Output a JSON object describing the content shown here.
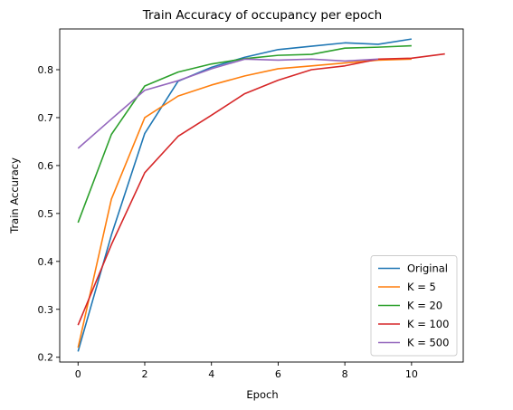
{
  "chart_data": {
    "type": "line",
    "title": "Train Accuracy of occupancy per epoch",
    "xlabel": "Epoch",
    "ylabel": "Train Accuracy",
    "xlim": [
      -0.55,
      11.55
    ],
    "ylim": [
      0.19,
      0.885
    ],
    "xticks": [
      0,
      2,
      4,
      6,
      8,
      10
    ],
    "yticks": [
      0.2,
      0.3,
      0.4,
      0.5,
      0.6,
      0.7,
      0.8
    ],
    "grid": false,
    "legend_position": "lower-right",
    "series": [
      {
        "name": "Original",
        "color": "#1f77b4",
        "x": [
          0,
          1,
          2,
          3,
          4,
          5,
          6,
          7,
          8,
          9,
          10
        ],
        "y": [
          0.212,
          0.455,
          0.667,
          0.776,
          0.805,
          0.826,
          0.842,
          0.849,
          0.856,
          0.853,
          0.864
        ]
      },
      {
        "name": "K = 5",
        "color": "#ff7f0e",
        "x": [
          0,
          1,
          2,
          3,
          4,
          5,
          6,
          7,
          8,
          9,
          10
        ],
        "y": [
          0.22,
          0.53,
          0.7,
          0.745,
          0.768,
          0.787,
          0.802,
          0.808,
          0.814,
          0.82,
          0.822
        ]
      },
      {
        "name": "K = 20",
        "color": "#2ca02c",
        "x": [
          0,
          1,
          2,
          3,
          4,
          5,
          6,
          7,
          8,
          9,
          10
        ],
        "y": [
          0.481,
          0.665,
          0.766,
          0.795,
          0.812,
          0.823,
          0.83,
          0.832,
          0.845,
          0.847,
          0.85
        ]
      },
      {
        "name": "K = 100",
        "color": "#d62728",
        "x": [
          0,
          1,
          2,
          3,
          4,
          5,
          6,
          7,
          8,
          9,
          10,
          11
        ],
        "y": [
          0.267,
          0.435,
          0.585,
          0.661,
          0.705,
          0.75,
          0.778,
          0.8,
          0.808,
          0.822,
          0.824,
          0.833
        ]
      },
      {
        "name": "K = 500",
        "color": "#9467bd",
        "x": [
          0,
          1,
          2,
          3,
          4,
          5,
          6,
          7,
          8,
          9
        ],
        "y": [
          0.636,
          0.697,
          0.757,
          0.777,
          0.802,
          0.822,
          0.82,
          0.822,
          0.818,
          0.822
        ]
      }
    ]
  }
}
